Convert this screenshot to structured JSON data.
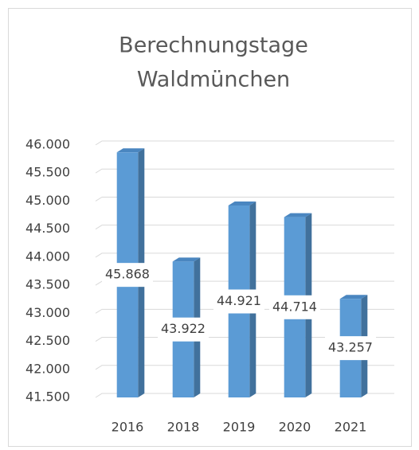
{
  "chart_data": {
    "type": "bar3d",
    "title": [
      "Berechnungstage",
      "Waldmünchen"
    ],
    "categories": [
      "2016",
      "2018",
      "2019",
      "2020",
      "2021"
    ],
    "values": [
      45868,
      43922,
      44921,
      44714,
      43257
    ],
    "value_labels": [
      "45.868",
      "43.922",
      "44.921",
      "44.714",
      "43.257"
    ],
    "color": "#5b9bd5",
    "ylim": [
      41500,
      46000
    ],
    "yticks": [
      {
        "value": 41500,
        "label": "41.500"
      },
      {
        "value": 42000,
        "label": "42.000"
      },
      {
        "value": 42500,
        "label": "42.500"
      },
      {
        "value": 43000,
        "label": "43.000"
      },
      {
        "value": 43500,
        "label": "43.500"
      },
      {
        "value": 44000,
        "label": "44.000"
      },
      {
        "value": 44500,
        "label": "44.500"
      },
      {
        "value": 45000,
        "label": "45.000"
      },
      {
        "value": 45500,
        "label": "45.500"
      },
      {
        "value": 46000,
        "label": "46.000"
      }
    ],
    "grid": true
  }
}
